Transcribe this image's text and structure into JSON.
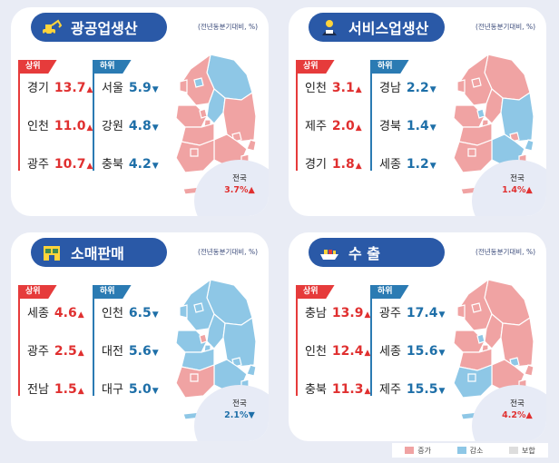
{
  "colors": {
    "increase": "#f0a3a3",
    "decrease": "#8ec7e6",
    "same": "#dddddd",
    "up_text": "#e03030",
    "down_text": "#1e6fa8",
    "title_bg": "#2a59a7"
  },
  "panels": [
    {
      "title": "광공업생산",
      "icon": "excavator-icon",
      "note": "(전년동분기대비, %)",
      "top_label": "상위",
      "bottom_label": "하위",
      "top": [
        {
          "region": "경기",
          "value": "13.7"
        },
        {
          "region": "인천",
          "value": "11.0"
        },
        {
          "region": "광주",
          "value": "10.7"
        }
      ],
      "bottom": [
        {
          "region": "서울",
          "value": "5.9"
        },
        {
          "region": "강원",
          "value": "4.8"
        },
        {
          "region": "충북",
          "value": "4.2"
        }
      ],
      "national_label": "전국",
      "national_value": "3.7%",
      "national_dir": "up",
      "map": {
        "gangwon": "decrease",
        "gyeonggi": "increase",
        "seoul": "decrease",
        "incheon": "increase",
        "chungbuk": "decrease",
        "chungnam": "increase",
        "sejong": "increase",
        "daejeon": "increase",
        "gyeongbuk": "increase",
        "jeonbuk": "increase",
        "gyeongnam": "increase",
        "daegu": "increase",
        "ulsan": "increase",
        "busan": "increase",
        "jeonnam": "increase",
        "gwangju": "increase",
        "jeju": "increase"
      }
    },
    {
      "title": "서비스업생산",
      "icon": "service-worker-icon",
      "note": "(전년동분기대비, %)",
      "top_label": "상위",
      "bottom_label": "하위",
      "top": [
        {
          "region": "인천",
          "value": "3.1"
        },
        {
          "region": "제주",
          "value": "2.0"
        },
        {
          "region": "경기",
          "value": "1.8"
        }
      ],
      "bottom": [
        {
          "region": "경남",
          "value": "2.2"
        },
        {
          "region": "경북",
          "value": "1.4"
        },
        {
          "region": "세종",
          "value": "1.2"
        }
      ],
      "national_label": "전국",
      "national_value": "1.4%",
      "national_dir": "up",
      "map": {
        "gangwon": "increase",
        "gyeonggi": "increase",
        "seoul": "increase",
        "incheon": "increase",
        "chungbuk": "increase",
        "chungnam": "increase",
        "sejong": "decrease",
        "daejeon": "increase",
        "gyeongbuk": "decrease",
        "jeonbuk": "increase",
        "gyeongnam": "decrease",
        "daegu": "increase",
        "ulsan": "decrease",
        "busan": "increase",
        "jeonnam": "increase",
        "gwangju": "increase",
        "jeju": "increase"
      }
    },
    {
      "title": "소매판매",
      "icon": "store-icon",
      "note": "(전년동분기대비, %)",
      "top_label": "상위",
      "bottom_label": "하위",
      "top": [
        {
          "region": "세종",
          "value": "4.6"
        },
        {
          "region": "광주",
          "value": "2.5"
        },
        {
          "region": "전남",
          "value": "1.5"
        }
      ],
      "bottom": [
        {
          "region": "인천",
          "value": "6.5"
        },
        {
          "region": "대전",
          "value": "5.6"
        },
        {
          "region": "대구",
          "value": "5.0"
        }
      ],
      "national_label": "전국",
      "national_value": "2.1%",
      "national_dir": "down",
      "map": {
        "gangwon": "decrease",
        "gyeonggi": "decrease",
        "seoul": "decrease",
        "incheon": "decrease",
        "chungbuk": "decrease",
        "chungnam": "decrease",
        "sejong": "increase",
        "daejeon": "decrease",
        "gyeongbuk": "decrease",
        "jeonbuk": "decrease",
        "gyeongnam": "decrease",
        "daegu": "decrease",
        "ulsan": "decrease",
        "busan": "decrease",
        "jeonnam": "increase",
        "gwangju": "increase",
        "jeju": "decrease"
      }
    },
    {
      "title": "수 출",
      "icon": "cargo-ship-icon",
      "note": "(전년동분기대비, %)",
      "top_label": "상위",
      "bottom_label": "하위",
      "top": [
        {
          "region": "충남",
          "value": "13.9"
        },
        {
          "region": "인천",
          "value": "12.4"
        },
        {
          "region": "충북",
          "value": "11.3"
        }
      ],
      "bottom": [
        {
          "region": "광주",
          "value": "17.4"
        },
        {
          "region": "세종",
          "value": "15.6"
        },
        {
          "region": "제주",
          "value": "15.5"
        }
      ],
      "national_label": "전국",
      "national_value": "4.2%",
      "national_dir": "up",
      "map": {
        "gangwon": "increase",
        "gyeonggi": "increase",
        "seoul": "increase",
        "incheon": "increase",
        "chungbuk": "increase",
        "chungnam": "increase",
        "sejong": "decrease",
        "daejeon": "increase",
        "gyeongbuk": "increase",
        "jeonbuk": "increase",
        "gyeongnam": "increase",
        "daegu": "decrease",
        "ulsan": "increase",
        "busan": "increase",
        "jeonnam": "decrease",
        "gwangju": "decrease",
        "jeju": "decrease"
      }
    }
  ],
  "legend": [
    {
      "label": "증가",
      "color": "#f0a3a3"
    },
    {
      "label": "감소",
      "color": "#8ec7e6"
    },
    {
      "label": "보합",
      "color": "#dddddd"
    }
  ],
  "arrows": {
    "up": "▲",
    "down": "▼"
  }
}
